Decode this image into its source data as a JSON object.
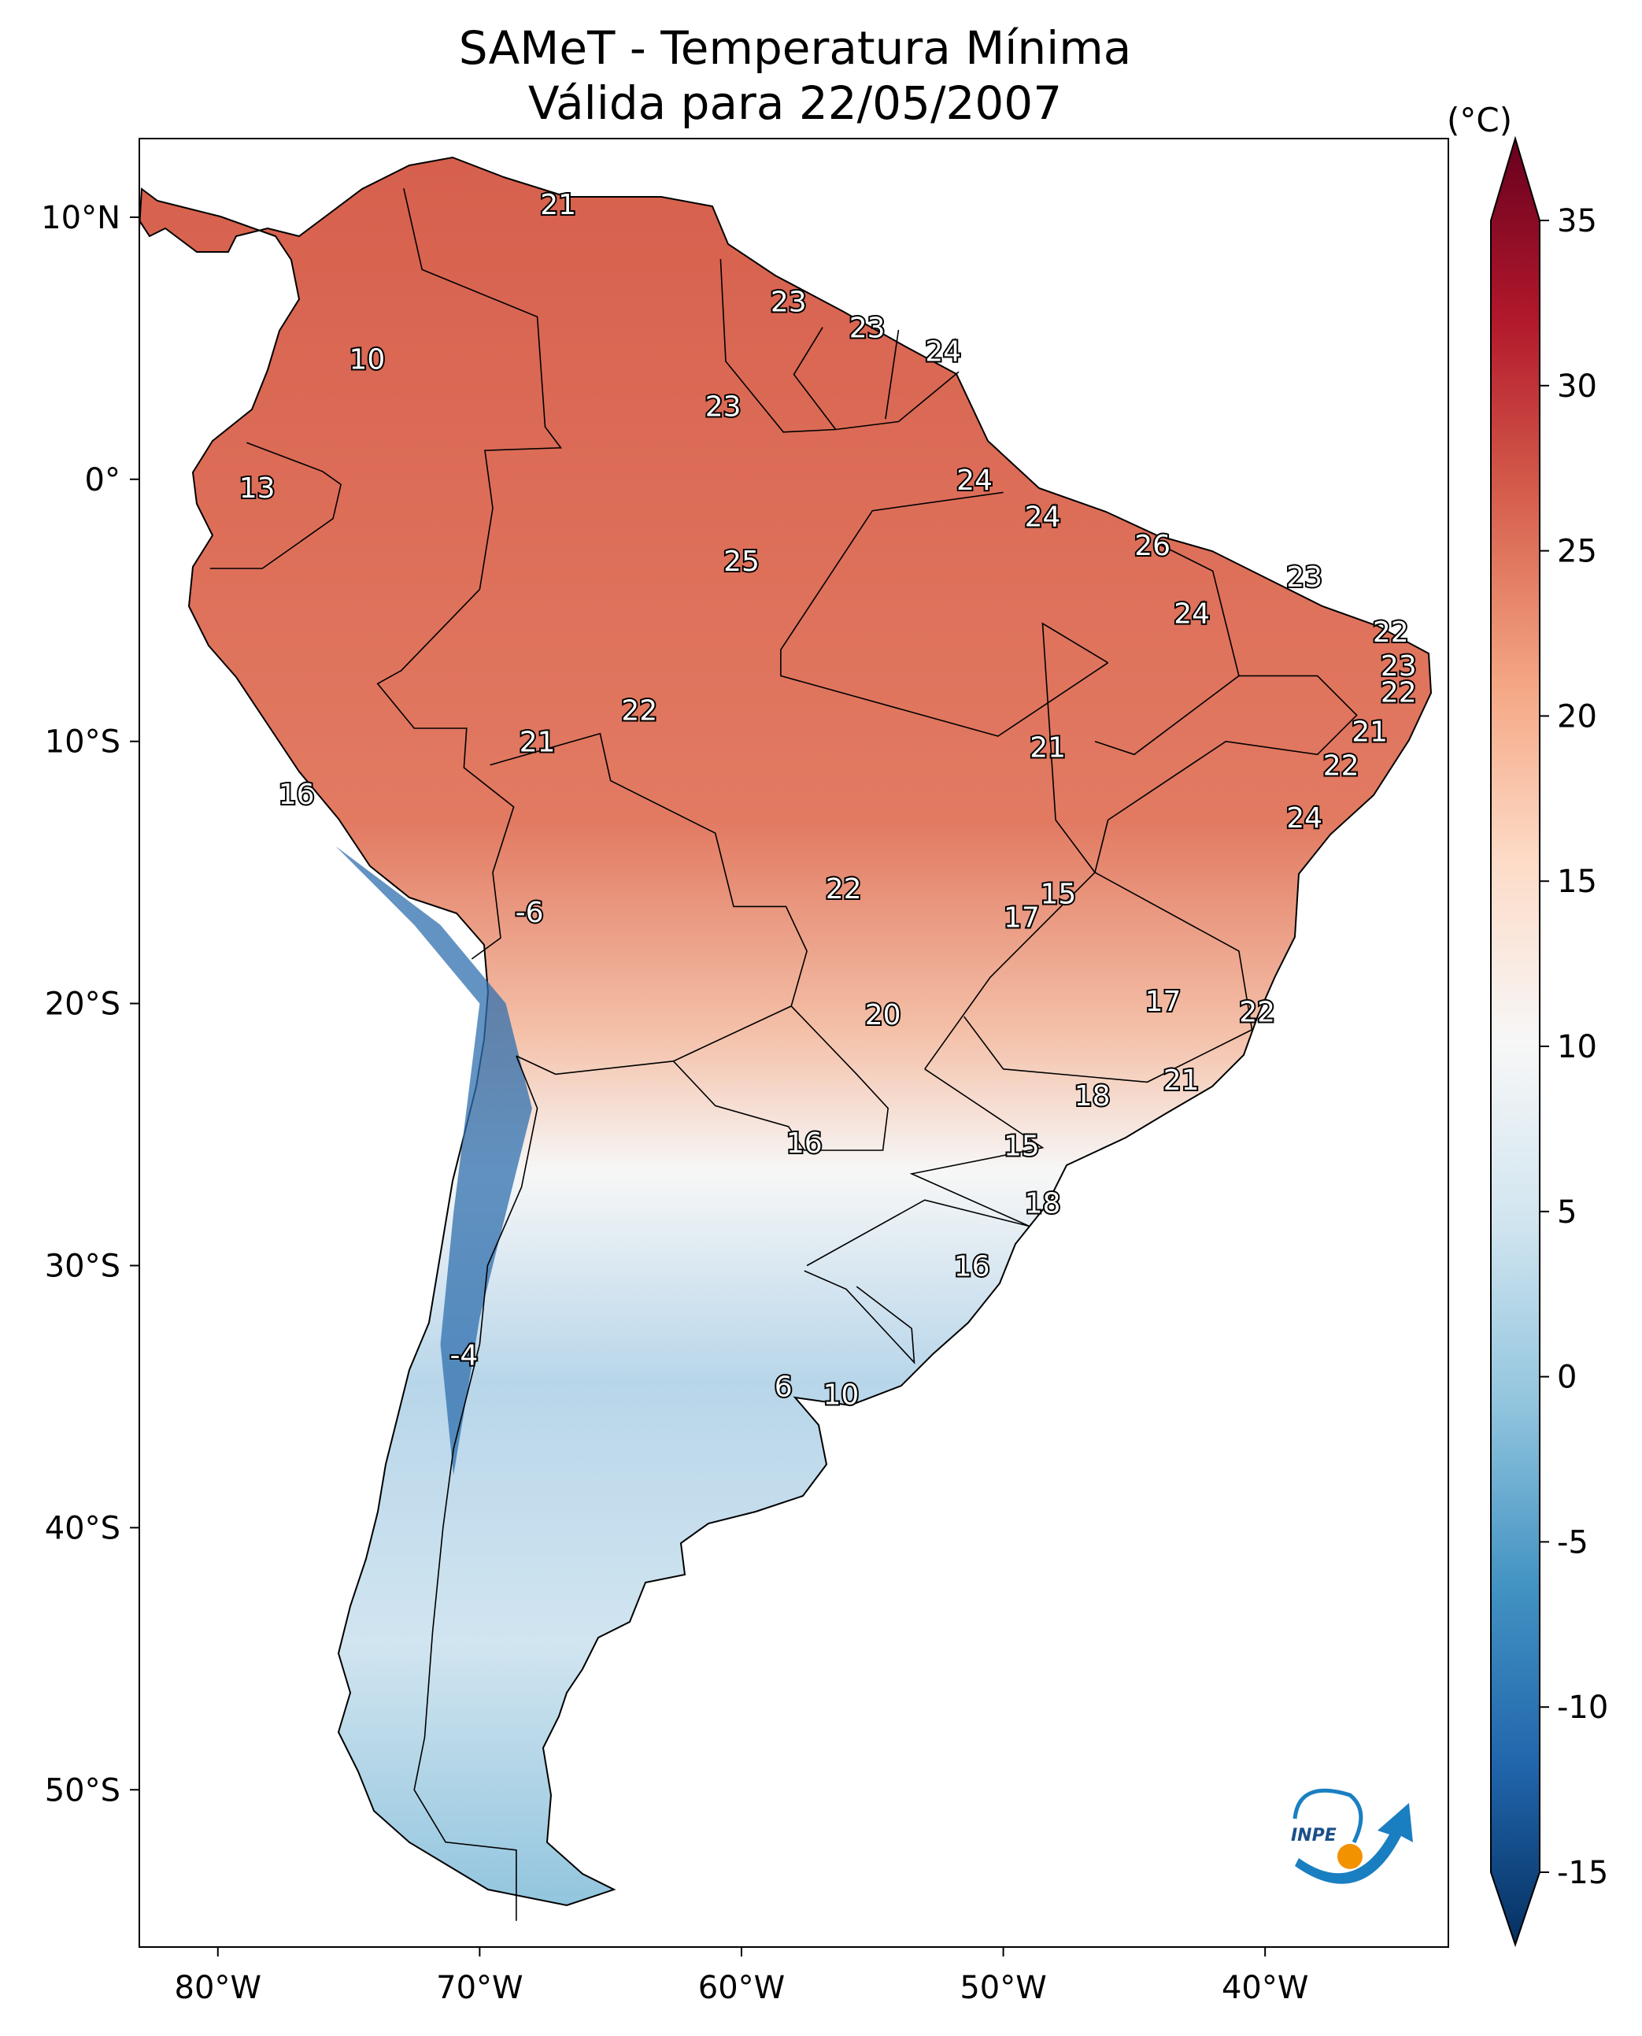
{
  "title": {
    "line1": "SAMeT - Temperatura Mínima",
    "line2": "Válida para 22/05/2007"
  },
  "map": {
    "lon_ticks": [
      "80°W",
      "70°W",
      "60°W",
      "50°W",
      "40°W"
    ],
    "lat_ticks": [
      "10°N",
      "0°",
      "10°S",
      "20°S",
      "30°S",
      "40°S",
      "50°S"
    ],
    "extent": {
      "lon": [
        -83,
        -33
      ],
      "lat": [
        -56,
        13
      ]
    }
  },
  "colorbar": {
    "unit": "(°C)",
    "ticks": [
      "35",
      "30",
      "25",
      "20",
      "15",
      "10",
      "5",
      "0",
      "-5",
      "-10",
      "-15"
    ],
    "range": [
      -15,
      35
    ],
    "colors": [
      "#053061",
      "#2166ac",
      "#4393c3",
      "#92c5de",
      "#d1e5f0",
      "#f7f7f7",
      "#fddbc7",
      "#f4a582",
      "#d6604d",
      "#b2182b",
      "#67001f"
    ]
  },
  "logo": {
    "text": "INPE",
    "blue": "#1a7fc1",
    "orange": "#f39200"
  },
  "stations": [
    {
      "value": "21",
      "lon": -67.0,
      "lat": 10.5
    },
    {
      "value": "10",
      "lon": -74.3,
      "lat": 4.6
    },
    {
      "value": "13",
      "lon": -78.5,
      "lat": -0.3
    },
    {
      "value": "23",
      "lon": -58.2,
      "lat": 6.8
    },
    {
      "value": "23",
      "lon": -55.2,
      "lat": 5.8
    },
    {
      "value": "24",
      "lon": -52.3,
      "lat": 4.9
    },
    {
      "value": "23",
      "lon": -60.7,
      "lat": 2.8
    },
    {
      "value": "24",
      "lon": -51.1,
      "lat": 0.0
    },
    {
      "value": "24",
      "lon": -48.5,
      "lat": -1.4
    },
    {
      "value": "26",
      "lon": -44.3,
      "lat": -2.5
    },
    {
      "value": "25",
      "lon": -60.0,
      "lat": -3.1
    },
    {
      "value": "23",
      "lon": -38.5,
      "lat": -3.7
    },
    {
      "value": "24",
      "lon": -42.8,
      "lat": -5.1
    },
    {
      "value": "22",
      "lon": -35.2,
      "lat": -5.8
    },
    {
      "value": "23",
      "lon": -34.9,
      "lat": -7.1
    },
    {
      "value": "22",
      "lon": -34.9,
      "lat": -8.1
    },
    {
      "value": "22",
      "lon": -63.9,
      "lat": -8.8
    },
    {
      "value": "21",
      "lon": -67.8,
      "lat": -10.0
    },
    {
      "value": "21",
      "lon": -48.3,
      "lat": -10.2
    },
    {
      "value": "21",
      "lon": -36.0,
      "lat": -9.6
    },
    {
      "value": "22",
      "lon": -37.1,
      "lat": -10.9
    },
    {
      "value": "16",
      "lon": -77.0,
      "lat": -12.0
    },
    {
      "value": "24",
      "lon": -38.5,
      "lat": -12.9
    },
    {
      "value": "22",
      "lon": -56.1,
      "lat": -15.6
    },
    {
      "value": "15",
      "lon": -47.9,
      "lat": -15.8
    },
    {
      "value": "17",
      "lon": -49.3,
      "lat": -16.7
    },
    {
      "value": "-6",
      "lon": -68.1,
      "lat": -16.5
    },
    {
      "value": "17",
      "lon": -43.9,
      "lat": -19.9
    },
    {
      "value": "22",
      "lon": -40.3,
      "lat": -20.3
    },
    {
      "value": "20",
      "lon": -54.6,
      "lat": -20.4
    },
    {
      "value": "21",
      "lon": -43.2,
      "lat": -22.9
    },
    {
      "value": "18",
      "lon": -46.6,
      "lat": -23.5
    },
    {
      "value": "16",
      "lon": -57.6,
      "lat": -25.3
    },
    {
      "value": "15",
      "lon": -49.3,
      "lat": -25.4
    },
    {
      "value": "18",
      "lon": -48.5,
      "lat": -27.6
    },
    {
      "value": "16",
      "lon": -51.2,
      "lat": -30.0
    },
    {
      "value": "-4",
      "lon": -70.6,
      "lat": -33.4
    },
    {
      "value": "6",
      "lon": -58.4,
      "lat": -34.6
    },
    {
      "value": "10",
      "lon": -56.2,
      "lat": -34.9
    }
  ]
}
